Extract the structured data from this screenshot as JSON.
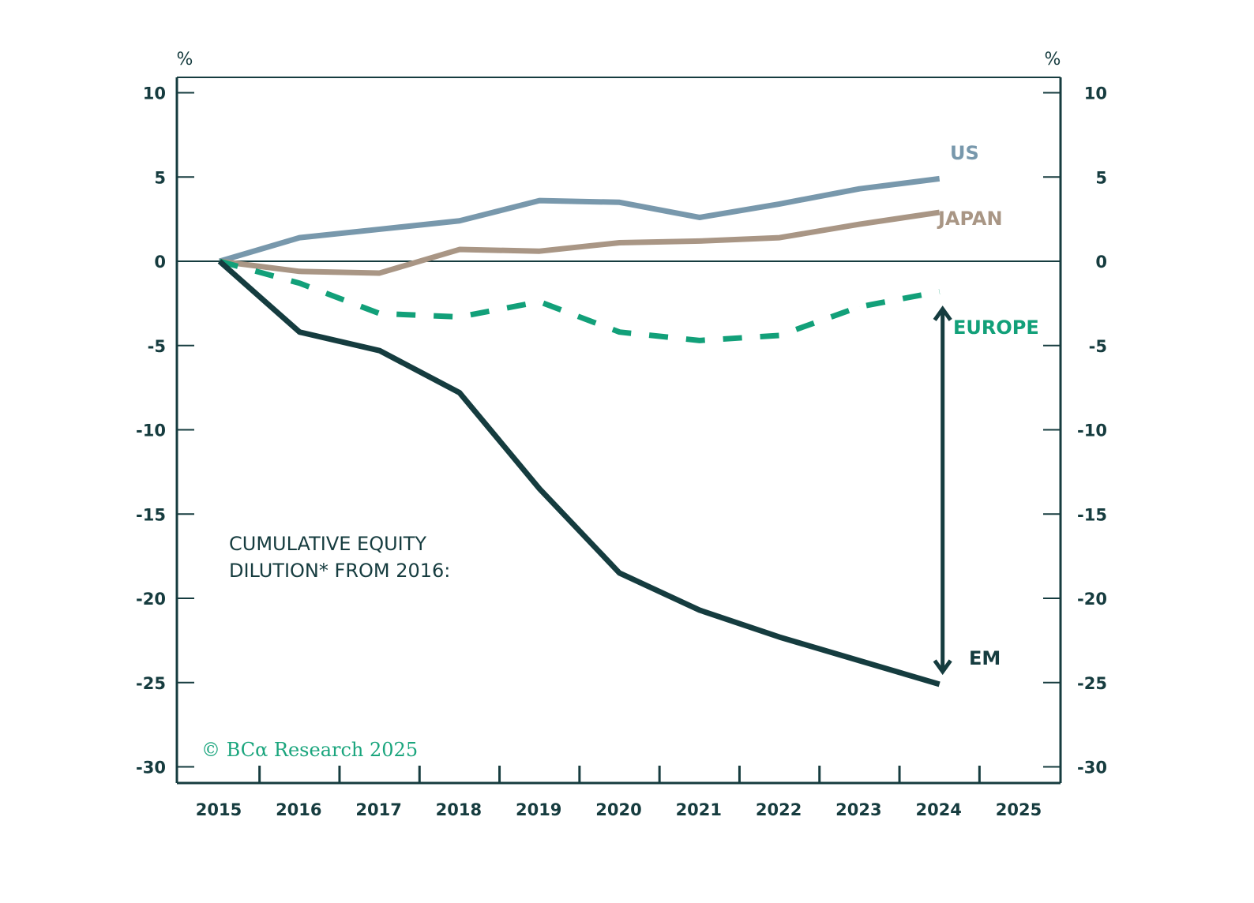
{
  "chart_data": {
    "type": "line",
    "title": "",
    "annotation": [
      "CUMULATIVE EQUITY",
      "DILUTION* FROM 2016:"
    ],
    "copyright": "© BCα Research 2025",
    "xlabel": "",
    "ylabel_left": "%",
    "ylabel_right": "%",
    "x": [
      2015,
      2016,
      2017,
      2018,
      2019,
      2020,
      2021,
      2022,
      2023,
      2024
    ],
    "x_ticks": [
      "2015",
      "2016",
      "2017",
      "2018",
      "2019",
      "2020",
      "2021",
      "2022",
      "2023",
      "2024",
      "2025"
    ],
    "xlim": [
      2015,
      2025
    ],
    "ylim": [
      -30,
      10
    ],
    "y_ticks": [
      10,
      5,
      0,
      -5,
      -10,
      -15,
      -20,
      -25,
      -30
    ],
    "y_tick_labels": [
      "10",
      "5",
      "0",
      "-5",
      "-10",
      "-15",
      "-20",
      "-25",
      "-30"
    ],
    "grid": false,
    "zero_line": true,
    "legend": "inline-labels-right",
    "series": [
      {
        "name": "US",
        "color": "#7898ac",
        "dashed": false,
        "values": [
          0,
          1.4,
          1.9,
          2.4,
          3.6,
          3.5,
          2.6,
          3.4,
          4.3,
          4.9
        ]
      },
      {
        "name": "JAPAN",
        "color": "#a99685",
        "dashed": false,
        "values": [
          0,
          -0.6,
          -0.7,
          0.7,
          0.6,
          1.1,
          1.2,
          1.4,
          2.2,
          2.9
        ]
      },
      {
        "name": "EUROPE",
        "color": "#12a079",
        "dashed": true,
        "values": [
          0,
          -1.3,
          -3.1,
          -3.3,
          -2.4,
          -4.2,
          -4.7,
          -4.4,
          -2.7,
          -1.8
        ]
      },
      {
        "name": "EM",
        "color": "#153c3f",
        "dashed": false,
        "values": [
          0,
          -4.2,
          -5.3,
          -7.8,
          -13.5,
          -18.5,
          -20.7,
          -22.3,
          -23.7,
          -25.1
        ]
      }
    ],
    "gap_arrow": {
      "x": 2024,
      "from_series": "EUROPE",
      "to_series": "EM",
      "color": "#153c3f"
    }
  },
  "colors": {
    "axis": "#163c3f",
    "text": "#163c3f",
    "copyright": "#1aa57d"
  }
}
